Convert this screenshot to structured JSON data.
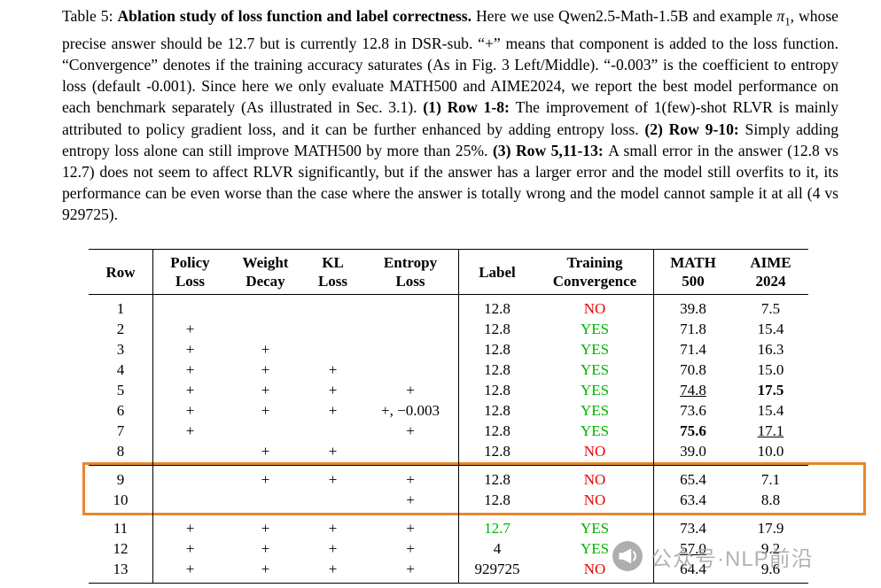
{
  "caption": {
    "segments": [
      {
        "t": "Table 5: "
      },
      {
        "t": "Ablation study of loss function and label correctness.",
        "b": true
      },
      {
        "t": " Here we use Qwen2.5-Math-1.5B and example "
      },
      {
        "t": "π",
        "i": true
      },
      {
        "t": "1",
        "sub": true
      },
      {
        "t": ", whose precise answer should be 12.7 but is currently 12.8 in DSR-sub. “+” means that component is added to the loss function. “Convergence” denotes if the training accuracy saturates (As in Fig. 3 Left/Middle). “-0.003” is the coefficient to entropy loss (default -0.001). Since here we only evaluate MATH500 and AIME2024, we report the best model performance on each benchmark separately (As illustrated in Sec. 3.1). "
      },
      {
        "t": "(1) Row 1-8: ",
        "b": true
      },
      {
        "t": "The improvement of 1(few)-shot RLVR is mainly attributed to policy gradient loss, and it can be further enhanced by adding entropy loss. "
      },
      {
        "t": "(2) Row 9-10: ",
        "b": true
      },
      {
        "t": "Simply adding entropy loss alone can still improve MATH500 by more than 25%. "
      },
      {
        "t": "(3) Row 5,11-13: ",
        "b": true
      },
      {
        "t": "A small error in the answer (12.8 vs 12.7) does not seem to affect RLVR significantly, but if the answer has a larger error and the model still overfits to it, its performance can be even worse than the case where the answer is totally wrong and the model cannot sample it at all (4 vs 929725)."
      }
    ]
  },
  "table": {
    "headers": [
      [
        "Row"
      ],
      [
        "Policy",
        "Loss"
      ],
      [
        "Weight",
        "Decay"
      ],
      [
        "KL",
        "Loss"
      ],
      [
        "Entropy",
        "Loss"
      ],
      [
        "Label"
      ],
      [
        "Training",
        "Convergence"
      ],
      [
        "MATH",
        "500"
      ],
      [
        "AIME",
        "2024"
      ]
    ],
    "colors": {
      "yes": "#00b300",
      "no": "#ee0000"
    },
    "groups": [
      {
        "highlighted": false,
        "rows": [
          {
            "cells": [
              "1",
              "",
              "",
              "",
              "",
              "12.8",
              {
                "t": "NO",
                "c": "no"
              },
              "39.8",
              "7.5"
            ]
          },
          {
            "cells": [
              "2",
              "+",
              "",
              "",
              "",
              "12.8",
              {
                "t": "YES",
                "c": "yes"
              },
              "71.8",
              "15.4"
            ]
          },
          {
            "cells": [
              "3",
              "+",
              "+",
              "",
              "",
              "12.8",
              {
                "t": "YES",
                "c": "yes"
              },
              "71.4",
              "16.3"
            ]
          },
          {
            "cells": [
              "4",
              "+",
              "+",
              "+",
              "",
              "12.8",
              {
                "t": "YES",
                "c": "yes"
              },
              "70.8",
              "15.0"
            ]
          },
          {
            "cells": [
              "5",
              "+",
              "+",
              "+",
              "+",
              "12.8",
              {
                "t": "YES",
                "c": "yes"
              },
              {
                "t": "74.8",
                "u": true
              },
              {
                "t": "17.5",
                "b": true
              }
            ]
          },
          {
            "cells": [
              "6",
              "+",
              "+",
              "+",
              "+, −0.003",
              "12.8",
              {
                "t": "YES",
                "c": "yes"
              },
              "73.6",
              "15.4"
            ]
          },
          {
            "cells": [
              "7",
              "+",
              "",
              "",
              "+",
              "12.8",
              {
                "t": "YES",
                "c": "yes"
              },
              {
                "t": "75.6",
                "b": true
              },
              {
                "t": "17.1",
                "u": true
              }
            ]
          },
          {
            "cells": [
              "8",
              "",
              "+",
              "+",
              "",
              "12.8",
              {
                "t": "NO",
                "c": "no"
              },
              "39.0",
              "10.0"
            ]
          }
        ]
      },
      {
        "highlighted": true,
        "rows": [
          {
            "cells": [
              "9",
              "",
              "+",
              "+",
              "+",
              "12.8",
              {
                "t": "NO",
                "c": "no"
              },
              "65.4",
              "7.1"
            ]
          },
          {
            "cells": [
              "10",
              "",
              "",
              "",
              "+",
              "12.8",
              {
                "t": "NO",
                "c": "no"
              },
              "63.4",
              "8.8"
            ]
          }
        ]
      },
      {
        "highlighted": false,
        "rows": [
          {
            "cells": [
              "11",
              "+",
              "+",
              "+",
              "+",
              {
                "t": "12.7",
                "c": "yes"
              },
              {
                "t": "YES",
                "c": "yes"
              },
              "73.4",
              "17.9"
            ]
          },
          {
            "cells": [
              "12",
              "+",
              "+",
              "+",
              "+",
              "4",
              {
                "t": "YES",
                "c": "yes"
              },
              {
                "t": "57.0",
                "u": true
              },
              "9.2"
            ]
          },
          {
            "cells": [
              "13",
              "+",
              "+",
              "+",
              "+",
              "929725",
              {
                "t": "NO",
                "c": "no"
              },
              "64.4",
              "9.6"
            ]
          }
        ]
      }
    ]
  },
  "highlight_box": {
    "color": "#e8872d"
  },
  "watermark": {
    "icon": "megaphone-icon",
    "text": "公众号·NLP前沿"
  }
}
